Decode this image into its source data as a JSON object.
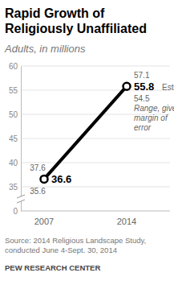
{
  "chart_data": {
    "type": "line",
    "title": "Rapid Growth of Religiously Unaffiliated",
    "subtitle": "Adults, in millions",
    "categories": [
      "2007",
      "2014"
    ],
    "values": [
      36.6,
      55.8
    ],
    "range_low": [
      35.6,
      54.5
    ],
    "range_high": [
      37.6,
      57.1
    ],
    "annotations": [
      "Estimate",
      "Range, given margin of error"
    ],
    "color": "#000000",
    "marker": "circle",
    "data_labels": true,
    "grid": true,
    "ylim": [
      0,
      60
    ],
    "yticks": [
      0,
      35,
      40,
      45,
      50,
      55,
      60
    ],
    "source": "Source: 2014 Religious Landscape Study, conducted June 4-Sept. 30, 2014",
    "credit": "PEW RESEARCH CENTER"
  }
}
